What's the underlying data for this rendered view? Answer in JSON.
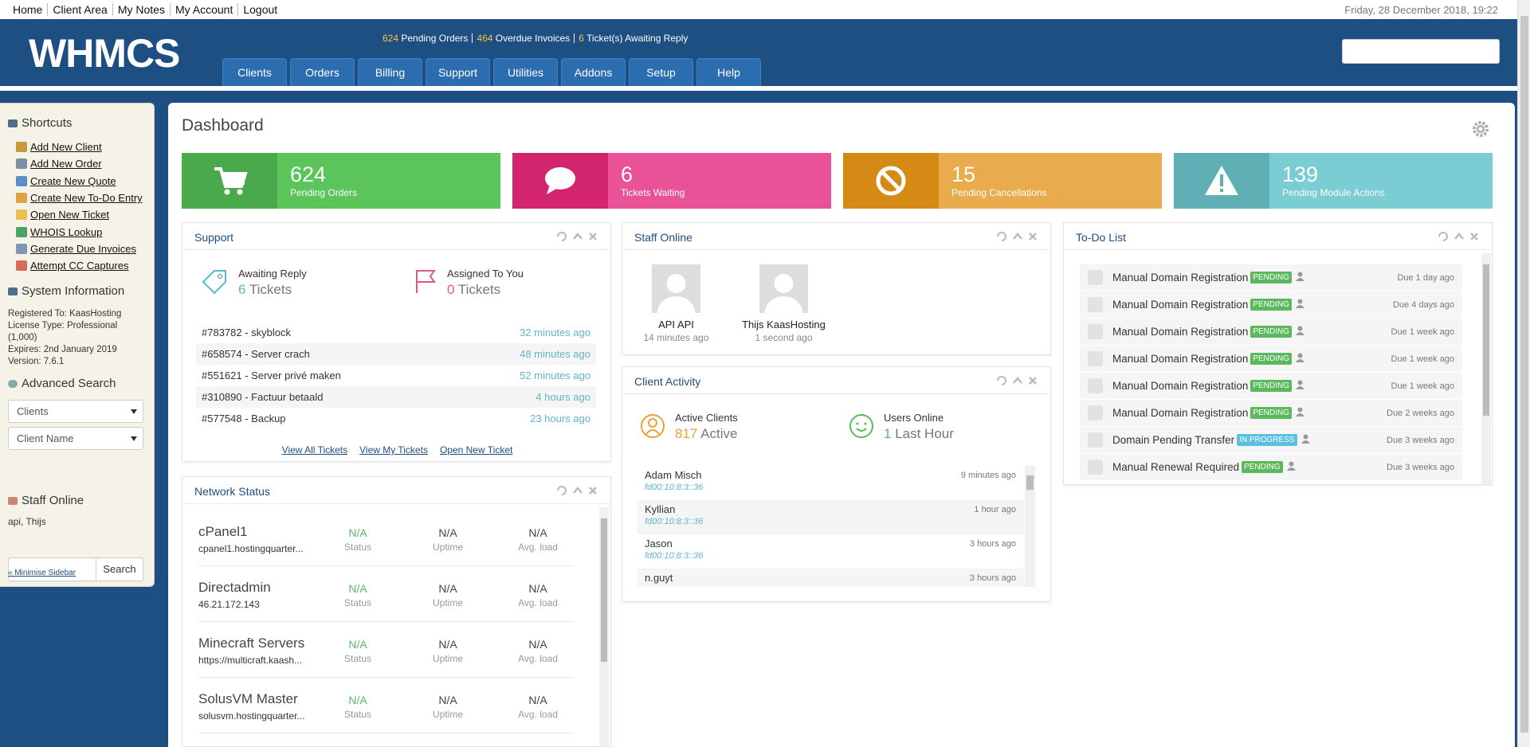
{
  "top_bar": {
    "links": [
      "Home",
      "Client Area",
      "My Notes",
      "My Account",
      "Logout"
    ],
    "datetime": "Friday, 28 December 2018, 19:22"
  },
  "header": {
    "logo": "WHMCS",
    "alerts": [
      {
        "count": 624,
        "label": "Pending Orders"
      },
      {
        "count": 464,
        "label": "Overdue Invoices"
      },
      {
        "count": 6,
        "label": "Ticket(s) Awaiting Reply"
      }
    ],
    "nav": [
      "Clients",
      "Orders",
      "Billing",
      "Support",
      "Utilities",
      "Addons",
      "Setup",
      "Help"
    ]
  },
  "sidebar": {
    "shortcuts": {
      "title": "Shortcuts",
      "links": [
        "Add New Client",
        "Add New Order",
        "Create New Quote",
        "Create New To-Do Entry",
        "Open New Ticket",
        "WHOIS Lookup",
        "Generate Due Invoices",
        "Attempt CC Captures"
      ]
    },
    "system_info": {
      "title": "System Information",
      "lines": [
        "Registered To: KaasHosting",
        "License Type: Professional (1,000)",
        "Expires: 2nd January 2019",
        "Version: 7.6.1"
      ]
    },
    "advanced_search": {
      "title": "Advanced Search",
      "type": "Clients",
      "field": "Client Name",
      "button": "Search"
    },
    "staff_online": {
      "title": "Staff Online",
      "names": "api, Thijs"
    },
    "minimise": "« Minimise Sidebar"
  },
  "dashboard": {
    "title": "Dashboard",
    "stats": [
      {
        "value": 624,
        "label": "Pending Orders"
      },
      {
        "value": 6,
        "label": "Tickets Waiting"
      },
      {
        "value": 15,
        "label": "Pending Cancellations"
      },
      {
        "value": 139,
        "label": "Pending Module Actions"
      }
    ]
  },
  "support": {
    "title": "Support",
    "awaiting": {
      "label": "Awaiting Reply",
      "count": 6,
      "unit": "Tickets"
    },
    "assigned": {
      "label": "Assigned To You",
      "count": 0,
      "unit": "Tickets"
    },
    "tickets": [
      {
        "title": "#783782 - skyblock",
        "time": "32 minutes ago"
      },
      {
        "title": "#658574 - Server crach",
        "time": "48 minutes ago"
      },
      {
        "title": "#551621 - Server privé maken",
        "time": "52 minutes ago"
      },
      {
        "title": "#310890 - Factuur betaald",
        "time": "4 hours ago"
      },
      {
        "title": "#577548 - Backup",
        "time": "23 hours ago"
      }
    ],
    "links": [
      "View All Tickets",
      "View My Tickets",
      "Open New Ticket"
    ]
  },
  "staff_online": {
    "title": "Staff Online",
    "members": [
      {
        "name": "API API",
        "time": "14 minutes ago"
      },
      {
        "name": "Thijs KaasHosting",
        "time": "1 second ago"
      }
    ]
  },
  "client_activity": {
    "title": "Client Activity",
    "active": {
      "label": "Active Clients",
      "count": 817,
      "unit": "Active"
    },
    "online": {
      "label": "Users Online",
      "count": 1,
      "unit": "Last Hour"
    },
    "clients": [
      {
        "name": "Adam Misch",
        "ip": "fd00:10:8:3::36",
        "time": "9 minutes ago"
      },
      {
        "name": "Kyllian",
        "ip": "fd00:10:8:3::36",
        "time": "1 hour ago"
      },
      {
        "name": "Jason",
        "ip": "fd00:10:8:3::36",
        "time": "3 hours ago"
      },
      {
        "name": "n.guyt",
        "time": "3 hours ago"
      }
    ]
  },
  "todo": {
    "title": "To-Do List",
    "items": [
      {
        "title": "Manual Domain Registration",
        "status": "PENDING",
        "due": "Due 1 day ago"
      },
      {
        "title": "Manual Domain Registration",
        "status": "PENDING",
        "due": "Due 4 days ago"
      },
      {
        "title": "Manual Domain Registration",
        "status": "PENDING",
        "due": "Due 1 week ago"
      },
      {
        "title": "Manual Domain Registration",
        "status": "PENDING",
        "due": "Due 1 week ago"
      },
      {
        "title": "Manual Domain Registration",
        "status": "PENDING",
        "due": "Due 1 week ago"
      },
      {
        "title": "Manual Domain Registration",
        "status": "PENDING",
        "due": "Due 2 weeks ago"
      },
      {
        "title": "Domain Pending Transfer",
        "status": "IN PROGRESS",
        "due": "Due 3 weeks ago"
      },
      {
        "title": "Manual Renewal Required",
        "status": "PENDING",
        "due": "Due 3 weeks ago"
      }
    ]
  },
  "network_status": {
    "title": "Network Status",
    "columns": [
      "Status",
      "Uptime",
      "Avg. load"
    ],
    "servers": [
      {
        "name": "cPanel1",
        "host": "cpanel1.hostingquarter...",
        "status": "N/A",
        "uptime": "N/A",
        "load": "N/A"
      },
      {
        "name": "Directadmin",
        "host": "46.21.172.143",
        "status": "N/A",
        "uptime": "N/A",
        "load": "N/A"
      },
      {
        "name": "Minecraft Servers",
        "host": "https://multicraft.kaash...",
        "status": "N/A",
        "uptime": "N/A",
        "load": "N/A"
      },
      {
        "name": "SolusVM Master",
        "host": "solusvm.hostingquarter...",
        "status": "N/A",
        "uptime": "N/A",
        "load": "N/A"
      }
    ]
  }
}
